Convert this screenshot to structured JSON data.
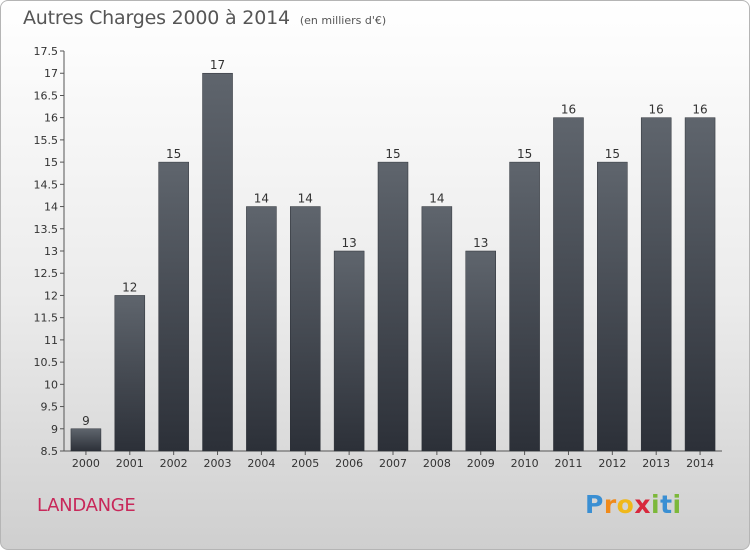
{
  "chart_data": {
    "type": "bar",
    "title": "Autres Charges 2000 à 2014",
    "subtitle": "(en milliers d'€)",
    "categories": [
      "2000",
      "2001",
      "2002",
      "2003",
      "2004",
      "2005",
      "2006",
      "2007",
      "2008",
      "2009",
      "2010",
      "2011",
      "2012",
      "2013",
      "2014"
    ],
    "values": [
      9,
      12,
      15,
      17,
      14,
      14,
      13,
      15,
      14,
      13,
      15,
      16,
      15,
      16,
      16
    ],
    "value_labels": [
      "9",
      "12",
      "15",
      "17",
      "14",
      "14",
      "13",
      "15",
      "14",
      "13",
      "15",
      "16",
      "15",
      "16",
      "16"
    ],
    "ylim": [
      8.5,
      17.5
    ],
    "yticks": [
      8.5,
      9,
      9.5,
      10,
      10.5,
      11,
      11.5,
      12,
      12.5,
      13,
      13.5,
      14,
      14.5,
      15,
      15.5,
      16,
      16.5,
      17,
      17.5
    ],
    "ytick_labels": [
      "8.5",
      "9",
      "9.5",
      "10",
      "10.5",
      "11",
      "11.5",
      "12",
      "12.5",
      "13",
      "13.5",
      "14",
      "14.5",
      "15",
      "15.5",
      "16",
      "16.5",
      "17",
      "17.5"
    ],
    "bar_color": "#474d55",
    "grid": false
  },
  "place": "LANDANGE",
  "brand": {
    "letters": [
      "P",
      "r",
      "o",
      "x",
      "i",
      "t",
      "i"
    ],
    "colors": [
      "#3a8fd3",
      "#f08a1a",
      "#f0b81a",
      "#d8283c",
      "#7cb83a",
      "#3a8fd3",
      "#7cb83a"
    ]
  }
}
